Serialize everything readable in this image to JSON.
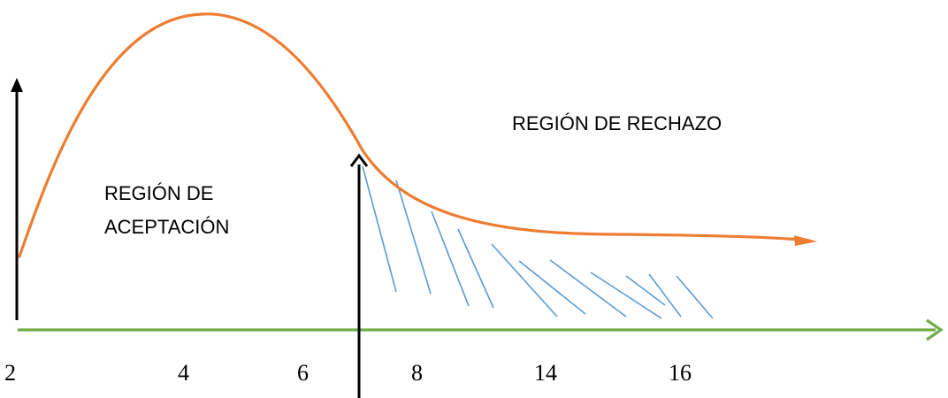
{
  "labels": {
    "acceptance_region_line1": "REGIÓN DE",
    "acceptance_region_line2": "ACEPTACIÓN",
    "rejection_region": "REGIÓN DE RECHAZO"
  },
  "x_tick_labels": [
    "2",
    "4",
    "6",
    "8",
    "14",
    "16"
  ],
  "colors": {
    "curve": "#ED7D31",
    "x_axis": "#70AD47",
    "hatching": "#5B9BD5",
    "arrows": "#000000"
  },
  "icons": {
    "axis_arrow": "arrow-right-icon",
    "vertical_arrows": "arrow-up-icon"
  }
}
